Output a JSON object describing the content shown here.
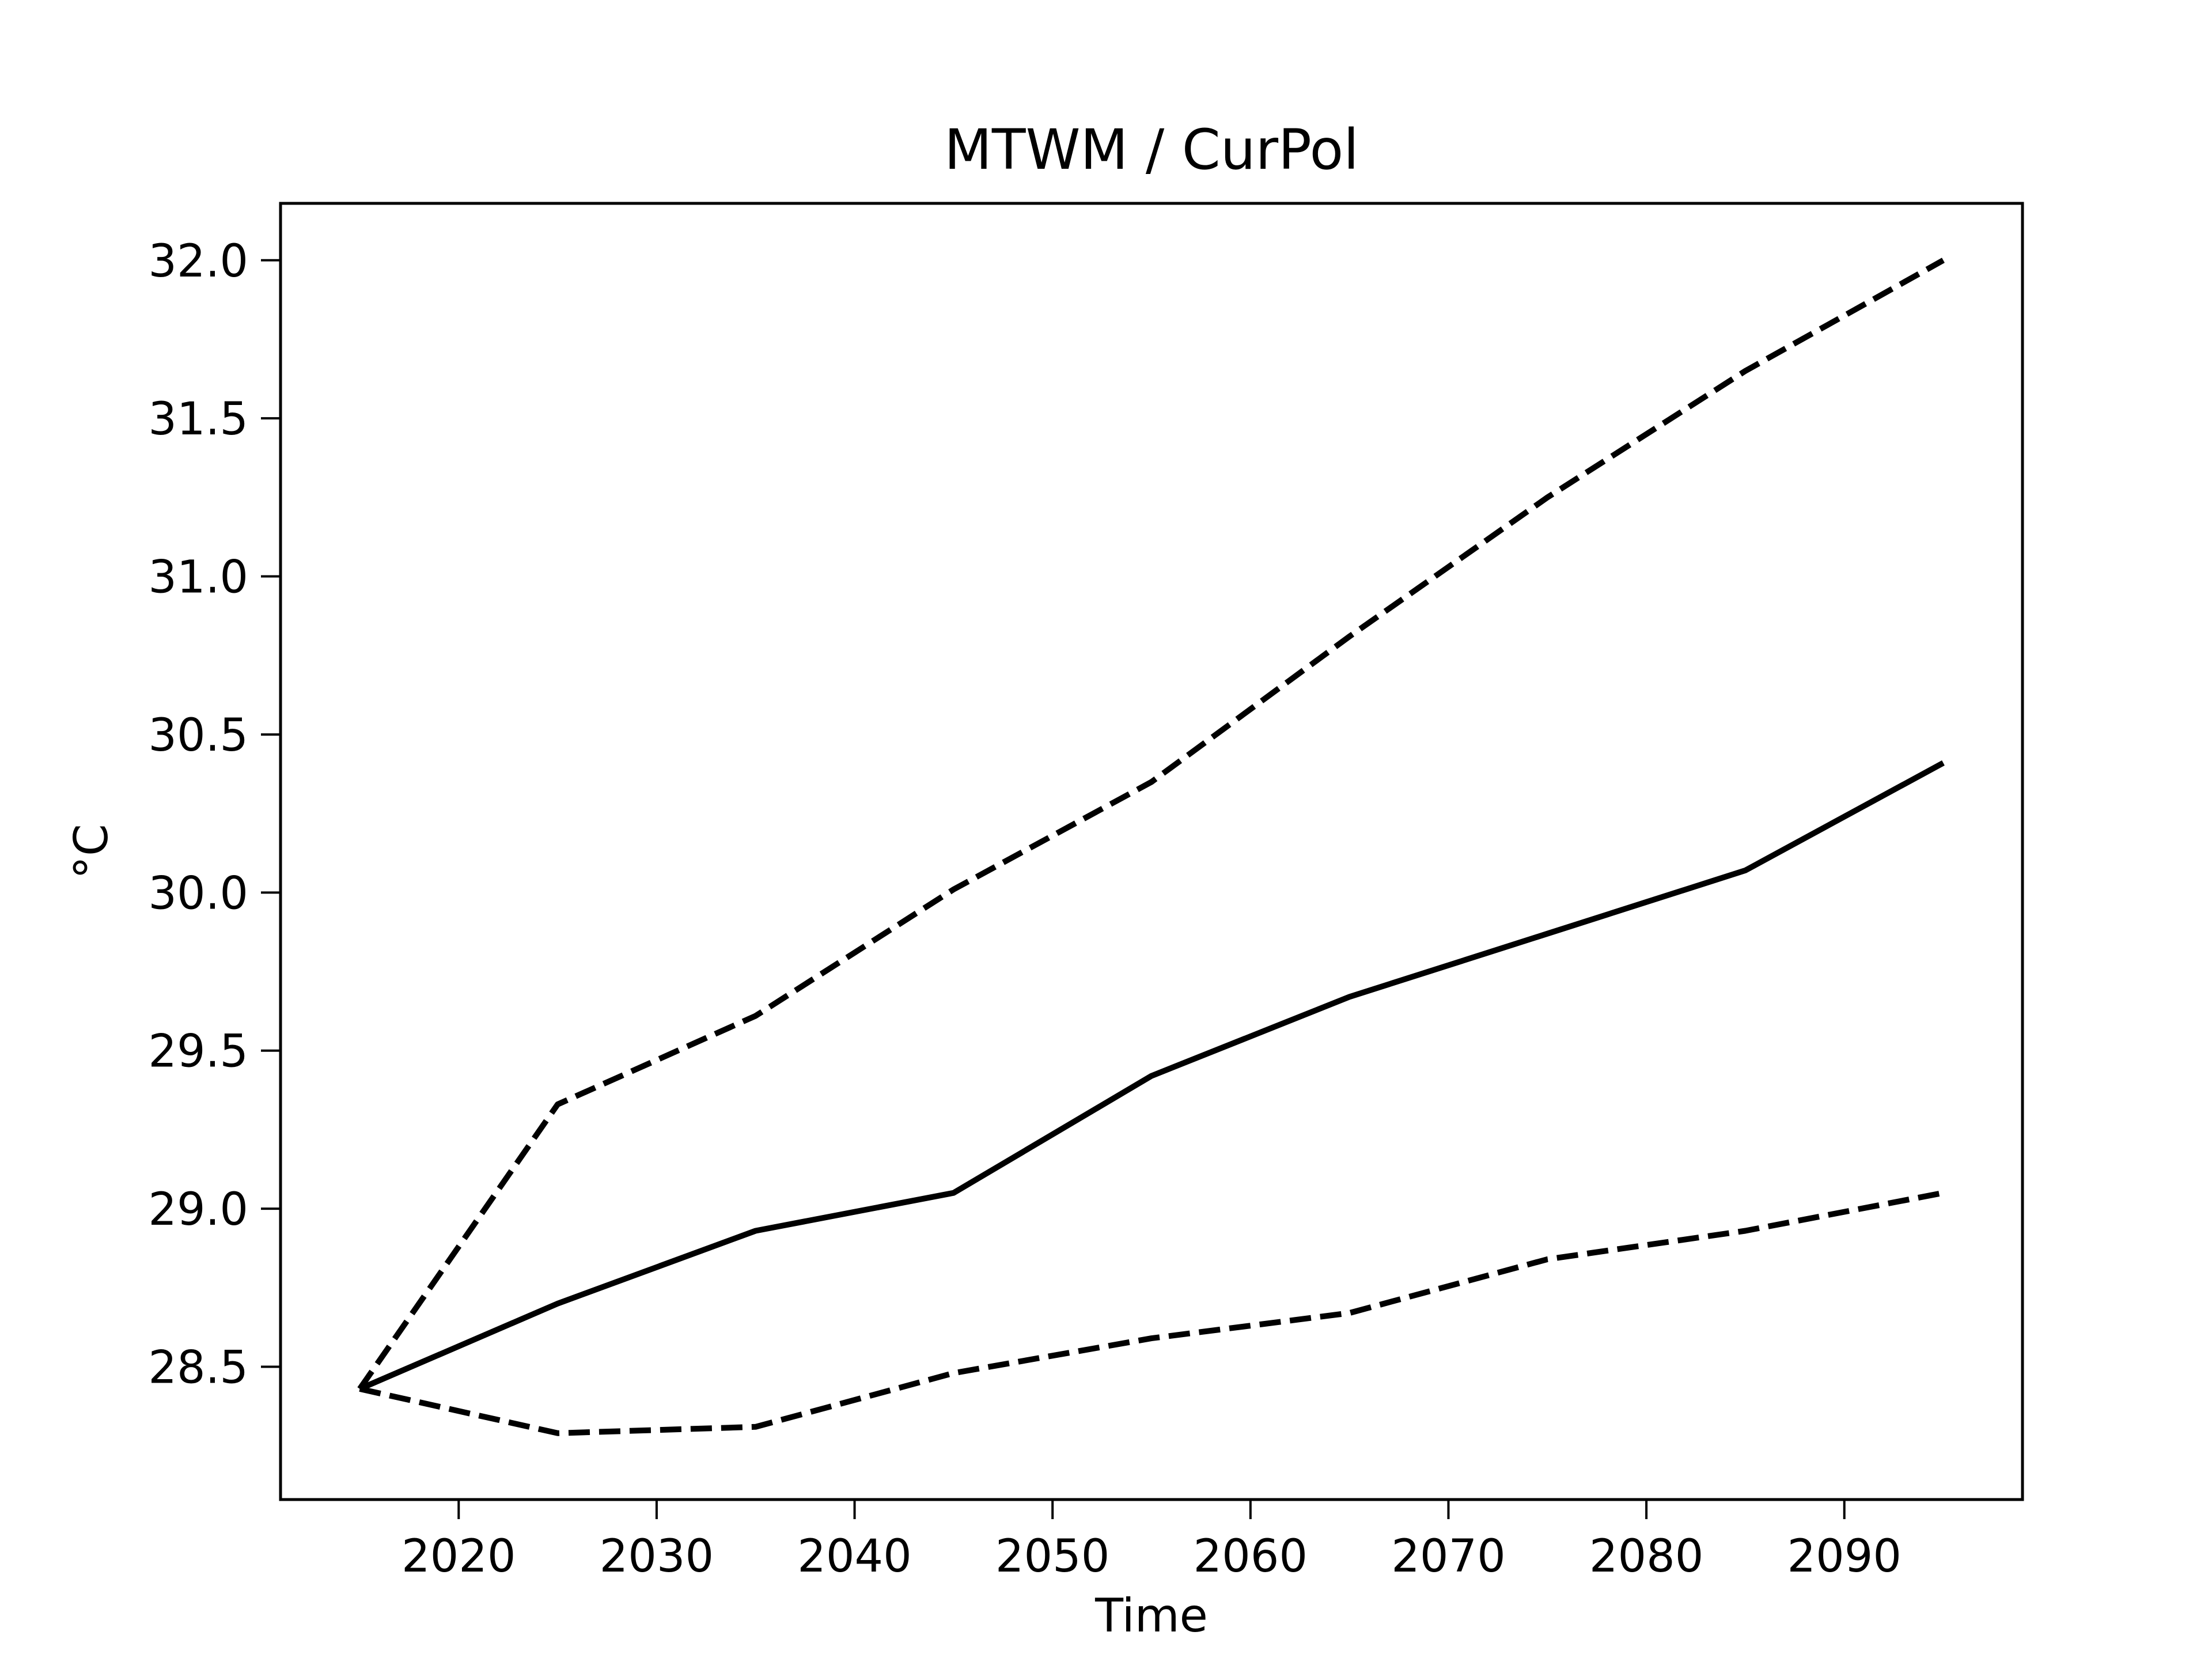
{
  "chart_data": {
    "type": "line",
    "title": "MTWM / CurPol",
    "xlabel": "Time",
    "ylabel": "°C",
    "xlim": [
      2011,
      2099
    ],
    "ylim": [
      28.08,
      32.18
    ],
    "xticks": [
      2020,
      2030,
      2040,
      2050,
      2060,
      2070,
      2080,
      2090
    ],
    "yticks": [
      28.5,
      29.0,
      29.5,
      30.0,
      30.5,
      31.0,
      31.5,
      32.0
    ],
    "xtick_labels": [
      "2020",
      "2030",
      "2040",
      "2050",
      "2060",
      "2070",
      "2080",
      "2090"
    ],
    "ytick_labels": [
      "28.5",
      "29.0",
      "29.5",
      "30.0",
      "30.5",
      "31.0",
      "31.5",
      "32.0"
    ],
    "grid": false,
    "legend": "none",
    "x": [
      2015,
      2025,
      2035,
      2045,
      2055,
      2065,
      2075,
      2085,
      2095
    ],
    "series": [
      {
        "style": "dashed",
        "color": "#000000",
        "values": [
          28.43,
          29.33,
          29.61,
          30.01,
          30.35,
          30.81,
          31.25,
          31.65,
          32.0
        ]
      },
      {
        "style": "solid",
        "color": "#000000",
        "values": [
          28.43,
          28.7,
          28.93,
          29.05,
          29.42,
          29.67,
          29.87,
          30.07,
          30.41
        ]
      },
      {
        "style": "dashed",
        "color": "#000000",
        "values": [
          28.43,
          28.29,
          28.31,
          28.48,
          28.59,
          28.67,
          28.84,
          28.93,
          29.05
        ]
      }
    ]
  }
}
